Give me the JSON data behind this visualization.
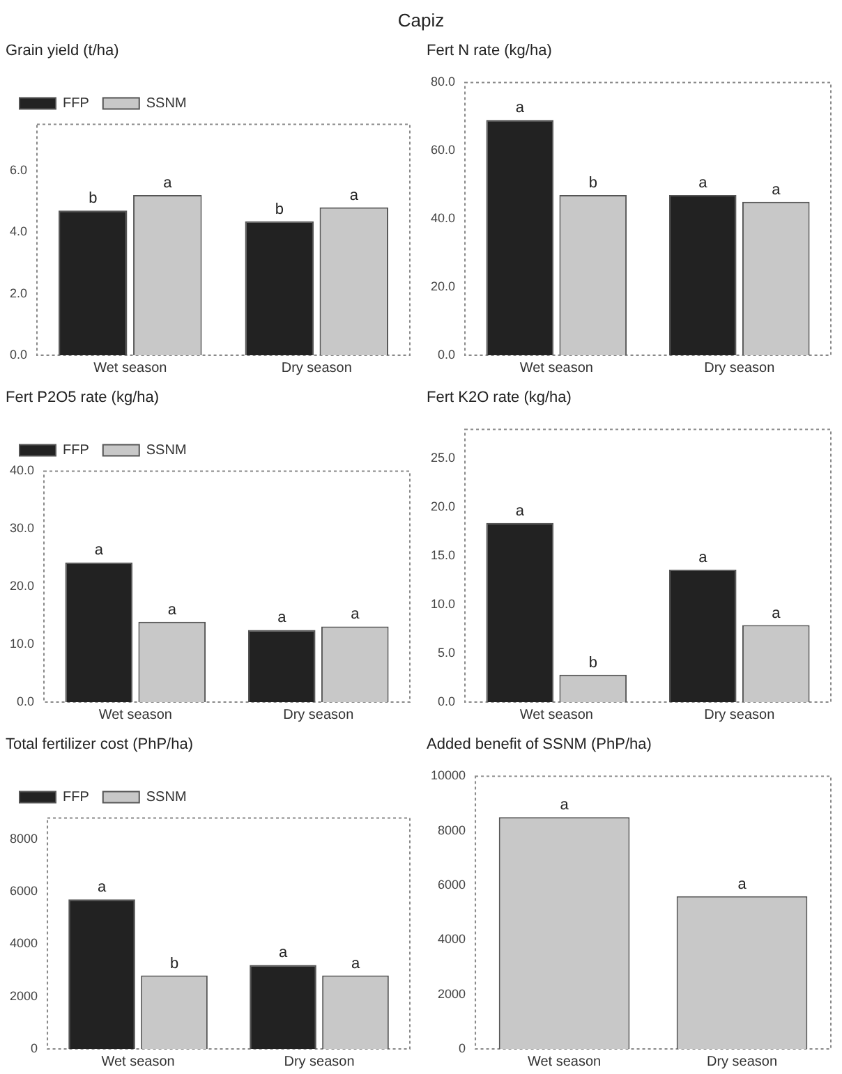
{
  "chart_data": [
    {
      "type": "bar",
      "title": "Capiz",
      "ylabel": "Grain yield (t/ha)",
      "categories": [
        "Wet season",
        "Dry season"
      ],
      "series": [
        {
          "name": "FFP",
          "color": "#222222",
          "values": [
            4.7,
            4.35
          ],
          "value_labels": [
            "b",
            "b"
          ]
        },
        {
          "name": "SSNM",
          "color": "#c8c8c8",
          "values": [
            5.2,
            4.8
          ],
          "value_labels": [
            "a",
            "a"
          ]
        }
      ],
      "ylim": [
        0,
        7.5
      ],
      "yticks": [
        {
          "value": 0,
          "label": "0.0"
        },
        {
          "value": 2,
          "label": "2.0"
        },
        {
          "value": 4,
          "label": "4.0"
        },
        {
          "value": 6,
          "label": "6.0"
        }
      ],
      "grid": false,
      "legend": "top left"
    },
    {
      "type": "bar",
      "ylabel": "Fert N rate (kg/ha)",
      "categories": [
        "Wet season",
        "Dry season"
      ],
      "series": [
        {
          "color": "#222222",
          "values": [
            69,
            47
          ],
          "value_labels": [
            "a",
            "a"
          ]
        },
        {
          "color": "#c8c8c8",
          "values": [
            47,
            45
          ],
          "value_labels": [
            "b",
            "a"
          ]
        }
      ],
      "ylim": [
        0,
        80
      ],
      "yticks": [
        {
          "value": 0,
          "label": "0.0"
        },
        {
          "value": 20,
          "label": "20.0"
        },
        {
          "value": 40,
          "label": "40.0"
        },
        {
          "value": 60,
          "label": "60.0"
        },
        {
          "value": 80,
          "label": "80.0"
        }
      ],
      "grid": false
    },
    {
      "type": "bar",
      "ylabel": "Fert P2O5 rate (kg/ha)",
      "categories": [
        "Wet season",
        "Dry season"
      ],
      "series": [
        {
          "name": "FFP",
          "color": "#222222",
          "values": [
            24.2,
            12.5
          ],
          "value_labels": [
            "a",
            "a"
          ]
        },
        {
          "name": "SSNM",
          "color": "#c8c8c8",
          "values": [
            13.9,
            13.1
          ],
          "value_labels": [
            "a",
            "a"
          ]
        }
      ],
      "ylim": [
        0,
        40
      ],
      "yticks": [
        {
          "value": 0,
          "label": "0.0"
        },
        {
          "value": 10,
          "label": "10.0"
        },
        {
          "value": 20,
          "label": "20.0"
        },
        {
          "value": 30,
          "label": "30.0"
        },
        {
          "value": 40,
          "label": "40.0"
        }
      ],
      "grid": false,
      "legend": "top left"
    },
    {
      "type": "bar",
      "ylabel": "Fert K2O rate (kg/ha)",
      "categories": [
        "Wet season",
        "Dry season"
      ],
      "series": [
        {
          "color": "#222222",
          "values": [
            18.4,
            13.6
          ],
          "value_labels": [
            "a",
            "a"
          ]
        },
        {
          "color": "#c8c8c8",
          "values": [
            2.8,
            7.9
          ],
          "value_labels": [
            "b",
            "a"
          ]
        }
      ],
      "ylim": [
        0,
        28
      ],
      "yticks": [
        {
          "value": 0,
          "label": "0.0"
        },
        {
          "value": 5,
          "label": "5.0"
        },
        {
          "value": 10,
          "label": "10.0"
        },
        {
          "value": 15,
          "label": "15.0"
        },
        {
          "value": 20,
          "label": "20.0"
        },
        {
          "value": 25,
          "label": "25.0"
        }
      ],
      "grid": false
    },
    {
      "type": "bar",
      "ylabel": "Total fertilizer cost (PhP/ha)",
      "categories": [
        "Wet season",
        "Dry season"
      ],
      "series": [
        {
          "name": "FFP",
          "color": "#222222",
          "values": [
            5700,
            3200
          ],
          "value_labels": [
            "a",
            "a"
          ]
        },
        {
          "name": "SSNM",
          "color": "#c8c8c8",
          "values": [
            2800,
            2800
          ],
          "value_labels": [
            "b",
            "a"
          ]
        }
      ],
      "ylim": [
        0,
        8800
      ],
      "yticks": [
        0,
        2000,
        4000,
        6000,
        8000
      ],
      "grid": false,
      "legend": "top left"
    },
    {
      "type": "bar",
      "ylabel": "Added benefit of SSNM (PhP/ha)",
      "categories": [
        "Wet season",
        "Dry season"
      ],
      "series": [
        {
          "color": "#c8c8c8",
          "values": [
            8500,
            5600
          ],
          "value_labels": [
            "a",
            "a"
          ]
        }
      ],
      "ylim": [
        0,
        10000
      ],
      "yticks": [
        0,
        2000,
        4000,
        6000,
        8000,
        10000
      ],
      "grid": false
    }
  ]
}
